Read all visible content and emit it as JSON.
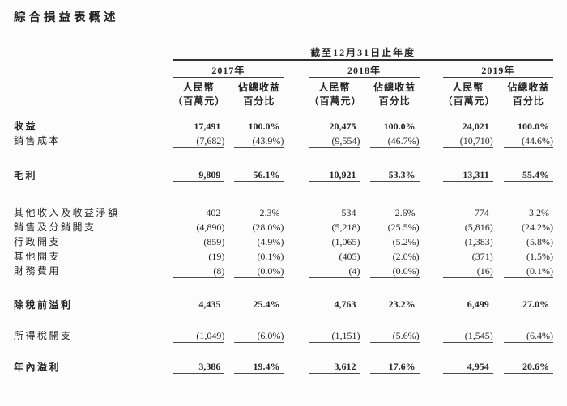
{
  "page": {
    "title": "綜合損益表概述"
  },
  "table": {
    "period_header": "截至12月31日止年度",
    "years": [
      "2017年",
      "2018年",
      "2019年"
    ],
    "column_headers": {
      "amount_line1": "人民幣",
      "amount_line2": "（百萬元）",
      "percent_line1": "佔總收益",
      "percent_line2": "百分比"
    },
    "sections": [
      {
        "rows": [
          {
            "label": "收益",
            "bold": true,
            "values": [
              "17,491",
              "100.0%",
              "20,475",
              "100.0%",
              "24,021",
              "100.0%"
            ]
          },
          {
            "label": "銷售成本",
            "bold": false,
            "values": [
              "(7,682)",
              "(43.9%)",
              "(9,554)",
              "(46.7%)",
              "(10,710)",
              "(44.6%)"
            ]
          }
        ]
      },
      {
        "rows": [
          {
            "label": "毛利",
            "bold": true,
            "values": [
              "9,809",
              "56.1%",
              "10,921",
              "53.3%",
              "13,311",
              "55.4%"
            ]
          }
        ]
      },
      {
        "rows": [
          {
            "label": "其他收入及收益淨額",
            "bold": false,
            "values": [
              "402",
              "2.3%",
              "534",
              "2.6%",
              "774",
              "3.2%"
            ]
          },
          {
            "label": "銷售及分銷開支",
            "bold": false,
            "values": [
              "(4,890)",
              "(28.0%)",
              "(5,218)",
              "(25.5%)",
              "(5,816)",
              "(24.2%)"
            ]
          },
          {
            "label": "行政開支",
            "bold": false,
            "values": [
              "(859)",
              "(4.9%)",
              "(1,065)",
              "(5.2%)",
              "(1,383)",
              "(5.8%)"
            ]
          },
          {
            "label": "其他開支",
            "bold": false,
            "values": [
              "(19)",
              "(0.1%)",
              "(405)",
              "(2.0%)",
              "(371)",
              "(1.5%)"
            ]
          },
          {
            "label": "財務費用",
            "bold": false,
            "values": [
              "(8)",
              "(0.0%)",
              "(4)",
              "(0.0%)",
              "(16)",
              "(0.1%)"
            ]
          }
        ]
      },
      {
        "rows": [
          {
            "label": "除稅前溢利",
            "bold": true,
            "values": [
              "4,435",
              "25.4%",
              "4,763",
              "23.2%",
              "6,499",
              "27.0%"
            ]
          }
        ]
      },
      {
        "rows": [
          {
            "label": "所得稅開支",
            "bold": false,
            "values": [
              "(1,049)",
              "(6.0%)",
              "(1,151)",
              "(5.6%)",
              "(1,545)",
              "(6.4%)"
            ]
          }
        ]
      },
      {
        "rows": [
          {
            "label": "年內溢利",
            "bold": true,
            "values": [
              "3,386",
              "19.4%",
              "3,612",
              "17.6%",
              "4,954",
              "20.6%"
            ]
          }
        ]
      }
    ]
  }
}
